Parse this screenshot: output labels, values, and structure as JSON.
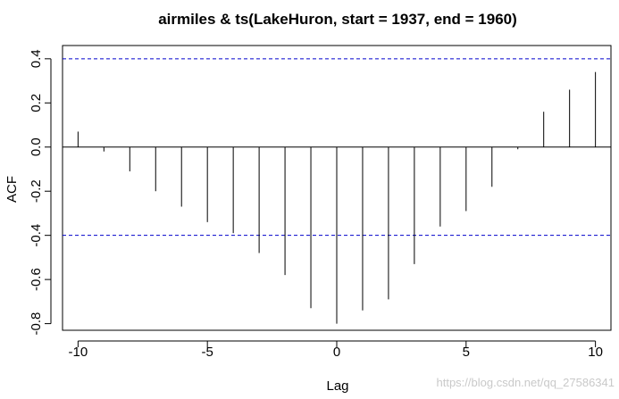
{
  "chart_data": {
    "type": "bar",
    "title": "airmiles & ts(LakeHuron, start = 1937, end = 1960)",
    "xlabel": "Lag",
    "ylabel": "ACF",
    "xlim": [
      -10.6,
      10.6
    ],
    "ylim": [
      -0.83,
      0.46
    ],
    "xticks": [
      -10,
      -5,
      0,
      5,
      10
    ],
    "yticks": [
      -0.8,
      -0.6,
      -0.4,
      -0.2,
      0.0,
      0.2,
      0.4
    ],
    "ytick_labels": [
      "-0.8",
      "-0.6",
      "-0.4",
      "-0.2",
      "0.0",
      "0.2",
      "0.4"
    ],
    "confidence_band": 0.4,
    "lags": [
      -10,
      -9,
      -8,
      -7,
      -6,
      -5,
      -4,
      -3,
      -2,
      -1,
      0,
      1,
      2,
      3,
      4,
      5,
      6,
      7,
      8,
      9,
      10
    ],
    "values": [
      0.07,
      -0.02,
      -0.11,
      -0.2,
      -0.27,
      -0.34,
      -0.39,
      -0.48,
      -0.58,
      -0.73,
      -0.8,
      -0.74,
      -0.69,
      -0.53,
      -0.36,
      -0.29,
      -0.18,
      -0.01,
      0.16,
      0.26,
      0.34
    ],
    "grid": false,
    "colors": {
      "bars": "#000000",
      "confidence": "#0000cc",
      "zero_line": "#000000"
    }
  },
  "watermark": "https://blog.csdn.net/qq_27586341"
}
